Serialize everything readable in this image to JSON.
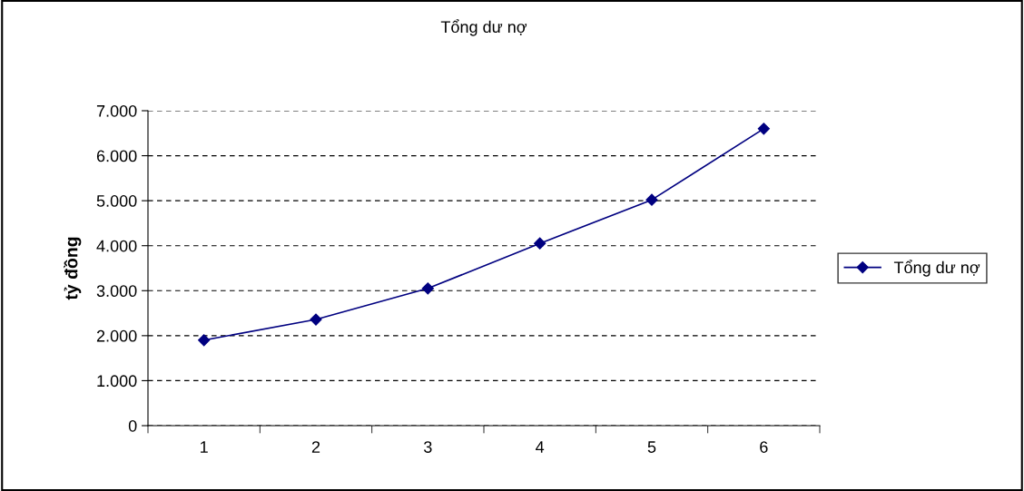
{
  "chart_data": {
    "type": "line",
    "title": "Tổng dư nợ",
    "ylabel": "tỷ đồng",
    "categories": [
      "1",
      "2",
      "3",
      "4",
      "5",
      "6"
    ],
    "series": [
      {
        "name": "Tổng dư nợ",
        "color": "#000080",
        "values": [
          1900,
          2360,
          3050,
          4050,
          5020,
          6600
        ]
      }
    ],
    "ylim": [
      0,
      7000
    ],
    "yticks": [
      0,
      {
        "value": 1000,
        "label": "1.000"
      },
      {
        "value": 2000,
        "label": "2.000"
      },
      {
        "value": 3000,
        "label": "3.000"
      },
      {
        "value": 4000,
        "label": "4.000"
      },
      {
        "value": 5000,
        "label": "5.000"
      },
      {
        "value": 6000,
        "label": "6.000"
      },
      {
        "value": 7000,
        "label": "7.000"
      }
    ],
    "grid": "y",
    "legend": "right",
    "marker": "diamond",
    "line_style": "solid"
  }
}
